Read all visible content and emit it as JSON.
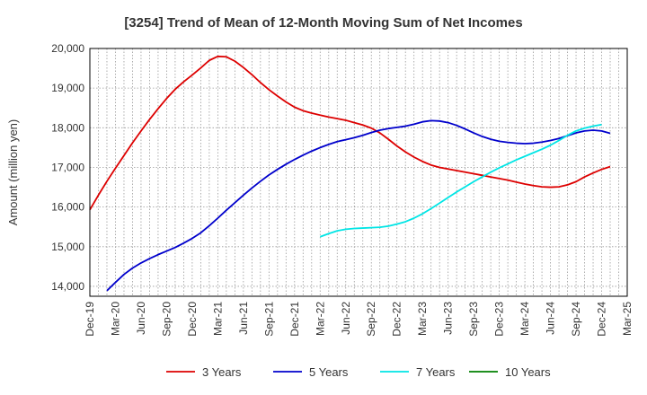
{
  "chart_data": {
    "type": "line",
    "title": "[3254]  Trend of Mean of 12-Month Moving Sum of Net Incomes",
    "xlabel": "",
    "ylabel": "Amount (million yen)",
    "ylim": [
      13750,
      20000
    ],
    "yticks": [
      14000,
      15000,
      16000,
      17000,
      18000,
      19000,
      20000
    ],
    "ytick_labels": [
      "14,000",
      "15,000",
      "16,000",
      "17,000",
      "18,000",
      "19,000",
      "20,000"
    ],
    "x_start": "2019-12",
    "x_end": "2025-03",
    "xtick_labels": [
      "Dec-19",
      "Mar-20",
      "Jun-20",
      "Sep-20",
      "Dec-20",
      "Mar-21",
      "Jun-21",
      "Sep-21",
      "Dec-21",
      "Mar-22",
      "Jun-22",
      "Sep-22",
      "Dec-22",
      "Mar-23",
      "Jun-23",
      "Sep-23",
      "Dec-23",
      "Mar-24",
      "Jun-24",
      "Sep-24",
      "Dec-24",
      "Mar-25"
    ],
    "grid": true,
    "legend_position": "bottom",
    "series": [
      {
        "name": "3 Years",
        "color": "#dd0000",
        "points": [
          [
            "2019-12",
            15930
          ],
          [
            "2020-01",
            16300
          ],
          [
            "2020-02",
            16650
          ],
          [
            "2020-03",
            16980
          ],
          [
            "2020-04",
            17300
          ],
          [
            "2020-05",
            17620
          ],
          [
            "2020-06",
            17920
          ],
          [
            "2020-07",
            18210
          ],
          [
            "2020-08",
            18480
          ],
          [
            "2020-09",
            18740
          ],
          [
            "2020-10",
            18970
          ],
          [
            "2020-11",
            19160
          ],
          [
            "2020-12",
            19330
          ],
          [
            "2021-01",
            19510
          ],
          [
            "2021-02",
            19700
          ],
          [
            "2021-03",
            19800
          ],
          [
            "2021-04",
            19790
          ],
          [
            "2021-05",
            19680
          ],
          [
            "2021-06",
            19520
          ],
          [
            "2021-07",
            19340
          ],
          [
            "2021-08",
            19140
          ],
          [
            "2021-09",
            18960
          ],
          [
            "2021-10",
            18800
          ],
          [
            "2021-11",
            18650
          ],
          [
            "2021-12",
            18520
          ],
          [
            "2022-01",
            18430
          ],
          [
            "2022-02",
            18370
          ],
          [
            "2022-03",
            18320
          ],
          [
            "2022-04",
            18270
          ],
          [
            "2022-05",
            18230
          ],
          [
            "2022-06",
            18190
          ],
          [
            "2022-07",
            18130
          ],
          [
            "2022-08",
            18070
          ],
          [
            "2022-09",
            17990
          ],
          [
            "2022-10",
            17870
          ],
          [
            "2022-11",
            17710
          ],
          [
            "2022-12",
            17540
          ],
          [
            "2023-01",
            17390
          ],
          [
            "2023-02",
            17260
          ],
          [
            "2023-03",
            17150
          ],
          [
            "2023-04",
            17060
          ],
          [
            "2023-05",
            17000
          ],
          [
            "2023-06",
            16960
          ],
          [
            "2023-07",
            16920
          ],
          [
            "2023-08",
            16880
          ],
          [
            "2023-09",
            16840
          ],
          [
            "2023-10",
            16800
          ],
          [
            "2023-11",
            16760
          ],
          [
            "2023-12",
            16720
          ],
          [
            "2024-01",
            16680
          ],
          [
            "2024-02",
            16630
          ],
          [
            "2024-03",
            16580
          ],
          [
            "2024-04",
            16540
          ],
          [
            "2024-05",
            16510
          ],
          [
            "2024-06",
            16500
          ],
          [
            "2024-07",
            16510
          ],
          [
            "2024-08",
            16560
          ],
          [
            "2024-09",
            16640
          ],
          [
            "2024-10",
            16760
          ],
          [
            "2024-11",
            16860
          ],
          [
            "2024-12",
            16950
          ],
          [
            "2025-01",
            17020
          ]
        ]
      },
      {
        "name": "5 Years",
        "color": "#0000cc",
        "points": [
          [
            "2020-02",
            13890
          ],
          [
            "2020-03",
            14100
          ],
          [
            "2020-04",
            14300
          ],
          [
            "2020-05",
            14460
          ],
          [
            "2020-06",
            14590
          ],
          [
            "2020-07",
            14700
          ],
          [
            "2020-08",
            14800
          ],
          [
            "2020-09",
            14890
          ],
          [
            "2020-10",
            14980
          ],
          [
            "2020-11",
            15090
          ],
          [
            "2020-12",
            15210
          ],
          [
            "2021-01",
            15350
          ],
          [
            "2021-02",
            15530
          ],
          [
            "2021-03",
            15720
          ],
          [
            "2021-04",
            15920
          ],
          [
            "2021-05",
            16110
          ],
          [
            "2021-06",
            16300
          ],
          [
            "2021-07",
            16480
          ],
          [
            "2021-08",
            16650
          ],
          [
            "2021-09",
            16810
          ],
          [
            "2021-10",
            16950
          ],
          [
            "2021-11",
            17080
          ],
          [
            "2021-12",
            17200
          ],
          [
            "2022-01",
            17310
          ],
          [
            "2022-02",
            17410
          ],
          [
            "2022-03",
            17500
          ],
          [
            "2022-04",
            17580
          ],
          [
            "2022-05",
            17650
          ],
          [
            "2022-06",
            17700
          ],
          [
            "2022-07",
            17750
          ],
          [
            "2022-08",
            17810
          ],
          [
            "2022-09",
            17880
          ],
          [
            "2022-10",
            17940
          ],
          [
            "2022-11",
            17980
          ],
          [
            "2022-12",
            18010
          ],
          [
            "2023-01",
            18040
          ],
          [
            "2023-02",
            18090
          ],
          [
            "2023-03",
            18150
          ],
          [
            "2023-04",
            18180
          ],
          [
            "2023-05",
            18170
          ],
          [
            "2023-06",
            18130
          ],
          [
            "2023-07",
            18060
          ],
          [
            "2023-08",
            17970
          ],
          [
            "2023-09",
            17870
          ],
          [
            "2023-10",
            17780
          ],
          [
            "2023-11",
            17710
          ],
          [
            "2023-12",
            17660
          ],
          [
            "2024-01",
            17630
          ],
          [
            "2024-02",
            17610
          ],
          [
            "2024-03",
            17600
          ],
          [
            "2024-04",
            17610
          ],
          [
            "2024-05",
            17640
          ],
          [
            "2024-06",
            17680
          ],
          [
            "2024-07",
            17730
          ],
          [
            "2024-08",
            17800
          ],
          [
            "2024-09",
            17870
          ],
          [
            "2024-10",
            17920
          ],
          [
            "2024-11",
            17940
          ],
          [
            "2024-12",
            17920
          ],
          [
            "2025-01",
            17860
          ]
        ]
      },
      {
        "name": "7 Years",
        "color": "#00e5e5",
        "points": [
          [
            "2022-03",
            15250
          ],
          [
            "2022-04",
            15330
          ],
          [
            "2022-05",
            15400
          ],
          [
            "2022-06",
            15440
          ],
          [
            "2022-07",
            15460
          ],
          [
            "2022-08",
            15470
          ],
          [
            "2022-09",
            15480
          ],
          [
            "2022-10",
            15490
          ],
          [
            "2022-11",
            15520
          ],
          [
            "2022-12",
            15570
          ],
          [
            "2023-01",
            15630
          ],
          [
            "2023-02",
            15720
          ],
          [
            "2023-03",
            15830
          ],
          [
            "2023-04",
            15960
          ],
          [
            "2023-05",
            16100
          ],
          [
            "2023-06",
            16240
          ],
          [
            "2023-07",
            16380
          ],
          [
            "2023-08",
            16510
          ],
          [
            "2023-09",
            16640
          ],
          [
            "2023-10",
            16760
          ],
          [
            "2023-11",
            16880
          ],
          [
            "2023-12",
            16990
          ],
          [
            "2024-01",
            17090
          ],
          [
            "2024-02",
            17190
          ],
          [
            "2024-03",
            17280
          ],
          [
            "2024-04",
            17370
          ],
          [
            "2024-05",
            17460
          ],
          [
            "2024-06",
            17560
          ],
          [
            "2024-07",
            17680
          ],
          [
            "2024-08",
            17810
          ],
          [
            "2024-09",
            17920
          ],
          [
            "2024-10",
            17990
          ],
          [
            "2024-11",
            18040
          ],
          [
            "2024-12",
            18080
          ]
        ]
      },
      {
        "name": "10 Years",
        "color": "#008000",
        "points": []
      }
    ]
  }
}
